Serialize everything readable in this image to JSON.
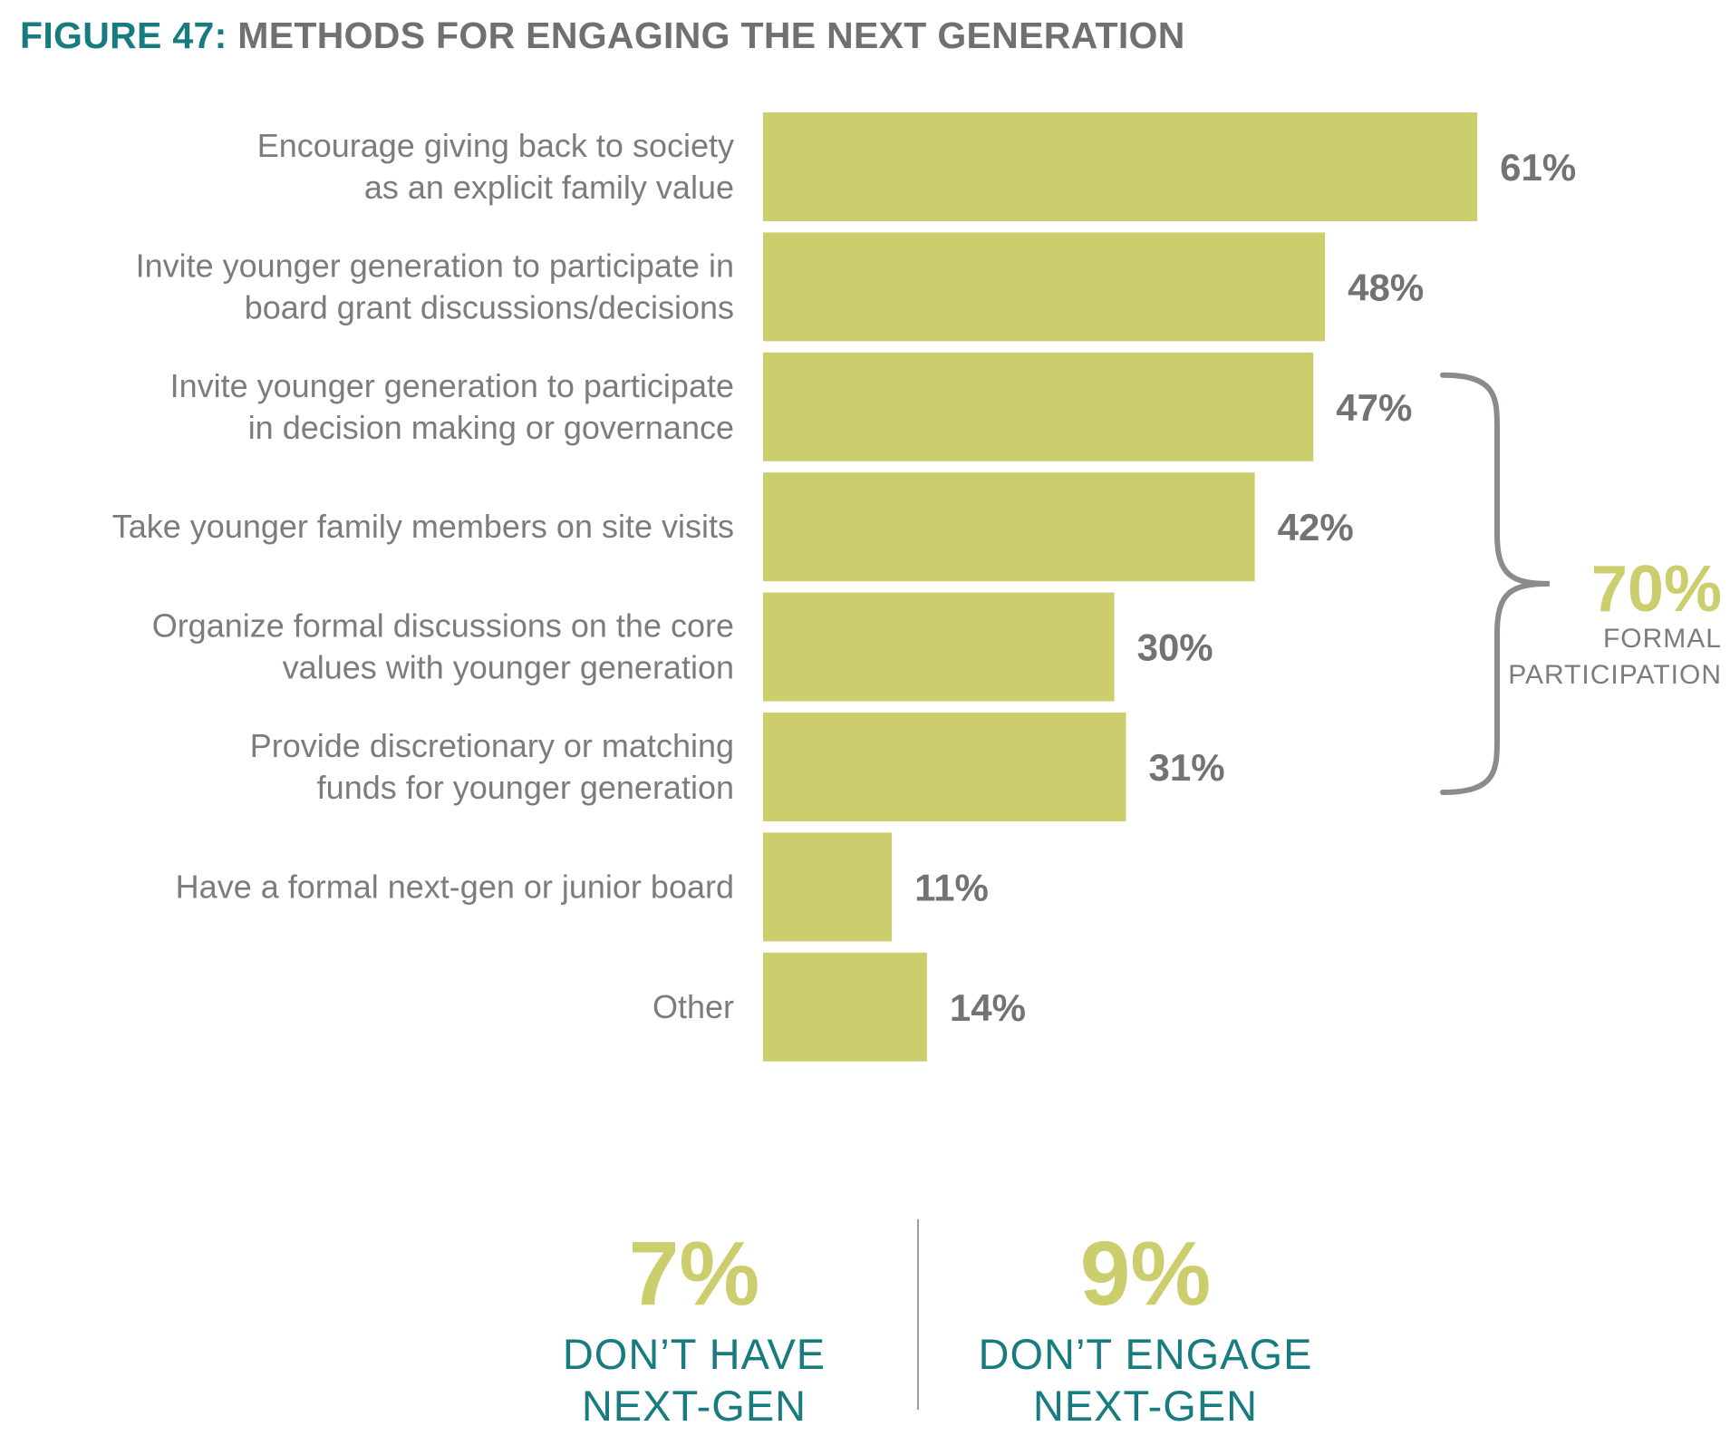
{
  "title": {
    "figure_label": "FIGURE 47:",
    "text": "METHODS FOR ENGAGING THE NEXT GENERATION"
  },
  "colors": {
    "bar": "#ccce6e",
    "teal": "#177b80",
    "gray_text": "#7b7c7e",
    "brace": "#8a8b8c"
  },
  "chart_data": {
    "type": "bar",
    "orientation": "horizontal",
    "categories": [
      [
        "Encourage giving back to society",
        "as an explicit family value"
      ],
      [
        "Invite younger generation to participate in",
        "board grant discussions/decisions"
      ],
      [
        "Invite younger generation to participate",
        "in decision making or governance"
      ],
      [
        "Take younger family members on site visits"
      ],
      [
        "Organize formal discussions on the core",
        "values with younger generation"
      ],
      [
        "Provide discretionary or matching",
        "funds for younger generation"
      ],
      [
        "Have a formal next-gen or junior board"
      ],
      [
        "Other"
      ]
    ],
    "values": [
      61,
      48,
      47,
      42,
      30,
      31,
      11,
      14
    ],
    "value_labels": [
      "61%",
      "48%",
      "47%",
      "42%",
      "30%",
      "31%",
      "11%",
      "14%"
    ],
    "unit": "%",
    "grid": false,
    "legend": "none",
    "bracket": {
      "from_index": 2,
      "to_index": 5,
      "value": "70%",
      "label_lines": [
        "FORMAL",
        "PARTICIPATION"
      ]
    }
  },
  "summary": [
    {
      "value": "7%",
      "caption": "DON’T HAVE\nNEXT-GEN"
    },
    {
      "value": "9%",
      "caption": "DON’T ENGAGE\nNEXT-GEN"
    }
  ]
}
